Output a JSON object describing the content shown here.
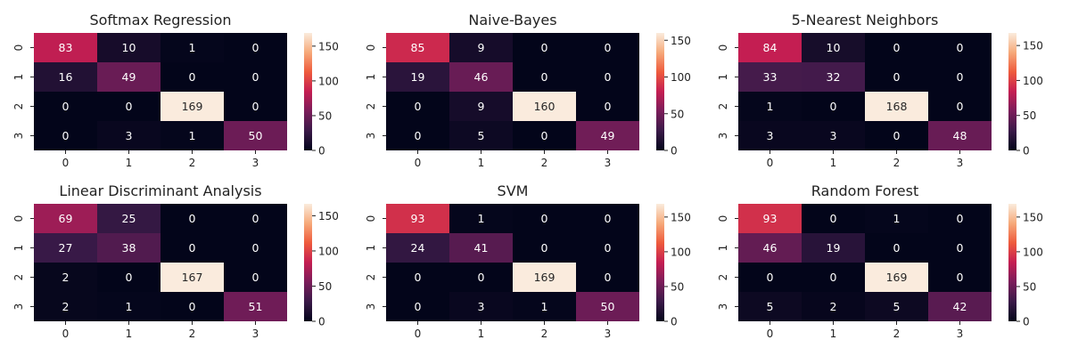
{
  "chart_data": [
    {
      "type": "heatmap",
      "title": "Softmax Regression",
      "x_ticks": [
        "0",
        "1",
        "2",
        "3"
      ],
      "y_ticks": [
        "0",
        "1",
        "2",
        "3"
      ],
      "matrix": [
        [
          83,
          10,
          1,
          0
        ],
        [
          16,
          49,
          0,
          0
        ],
        [
          0,
          0,
          169,
          0
        ],
        [
          0,
          3,
          1,
          50
        ]
      ],
      "colorbar_range": [
        0,
        169
      ],
      "colorbar_ticks": [
        "0",
        "50",
        "100",
        "150"
      ]
    },
    {
      "type": "heatmap",
      "title": "Naive-Bayes",
      "x_ticks": [
        "0",
        "1",
        "2",
        "3"
      ],
      "y_ticks": [
        "0",
        "1",
        "2",
        "3"
      ],
      "matrix": [
        [
          85,
          9,
          0,
          0
        ],
        [
          19,
          46,
          0,
          0
        ],
        [
          0,
          9,
          160,
          0
        ],
        [
          0,
          5,
          0,
          49
        ]
      ],
      "colorbar_range": [
        0,
        160
      ],
      "colorbar_ticks": [
        "0",
        "50",
        "100",
        "150"
      ]
    },
    {
      "type": "heatmap",
      "title": "5-Nearest Neighbors",
      "x_ticks": [
        "0",
        "1",
        "2",
        "3"
      ],
      "y_ticks": [
        "0",
        "1",
        "2",
        "3"
      ],
      "matrix": [
        [
          84,
          10,
          0,
          0
        ],
        [
          33,
          32,
          0,
          0
        ],
        [
          1,
          0,
          168,
          0
        ],
        [
          3,
          3,
          0,
          48
        ]
      ],
      "colorbar_range": [
        0,
        168
      ],
      "colorbar_ticks": [
        "0",
        "50",
        "100",
        "150"
      ]
    },
    {
      "type": "heatmap",
      "title": "Linear Discriminant Analysis",
      "x_ticks": [
        "0",
        "1",
        "2",
        "3"
      ],
      "y_ticks": [
        "0",
        "1",
        "2",
        "3"
      ],
      "matrix": [
        [
          69,
          25,
          0,
          0
        ],
        [
          27,
          38,
          0,
          0
        ],
        [
          2,
          0,
          167,
          0
        ],
        [
          2,
          1,
          0,
          51
        ]
      ],
      "colorbar_range": [
        0,
        167
      ],
      "colorbar_ticks": [
        "0",
        "50",
        "100",
        "150"
      ]
    },
    {
      "type": "heatmap",
      "title": "SVM",
      "x_ticks": [
        "0",
        "1",
        "2",
        "3"
      ],
      "y_ticks": [
        "0",
        "1",
        "2",
        "3"
      ],
      "matrix": [
        [
          93,
          1,
          0,
          0
        ],
        [
          24,
          41,
          0,
          0
        ],
        [
          0,
          0,
          169,
          0
        ],
        [
          0,
          3,
          1,
          50
        ]
      ],
      "colorbar_range": [
        0,
        169
      ],
      "colorbar_ticks": [
        "0",
        "50",
        "100",
        "150"
      ]
    },
    {
      "type": "heatmap",
      "title": "Random Forest",
      "x_ticks": [
        "0",
        "1",
        "2",
        "3"
      ],
      "y_ticks": [
        "0",
        "1",
        "2",
        "3"
      ],
      "matrix": [
        [
          93,
          0,
          1,
          0
        ],
        [
          46,
          19,
          0,
          0
        ],
        [
          0,
          0,
          169,
          0
        ],
        [
          5,
          2,
          5,
          42
        ]
      ],
      "colorbar_range": [
        0,
        169
      ],
      "colorbar_ticks": [
        "0",
        "50",
        "100",
        "150"
      ]
    }
  ],
  "colormap": {
    "name": "rocket",
    "stops": [
      "#03051a",
      "#3a1a48",
      "#7a1d5a",
      "#c41e52",
      "#ee5a3c",
      "#f6a97a",
      "#faebdd"
    ]
  }
}
